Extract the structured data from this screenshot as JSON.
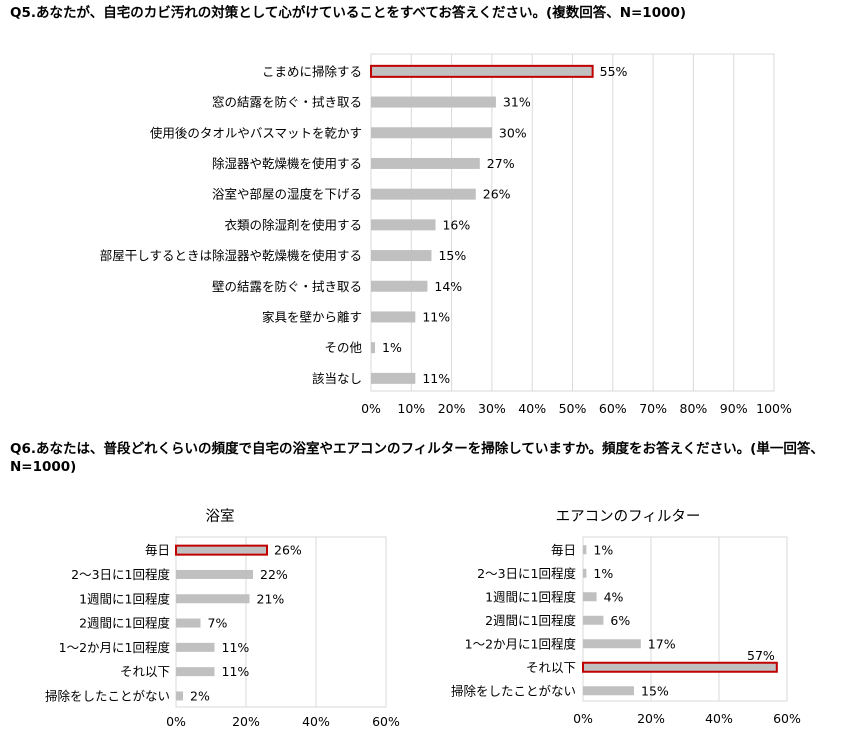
{
  "q5": {
    "question": "Q5.あなたが、自宅のカビ汚れの対策として心がけていることをすべてお答えください。(複数回答、N=1000)"
  },
  "q6": {
    "question": "Q6.あなたは、普段どれくらいの頻度で自宅の浴室やエアコンのフィルターを掃除していますか。頻度をお答えください。(単一回答、N=1000)"
  },
  "colors": {
    "bar": "#c0c0c0",
    "highlight_border": "#c00000",
    "grid": "#d9d9d9"
  },
  "chart_data": [
    {
      "type": "bar",
      "orientation": "horizontal",
      "categories": [
        "こまめに掃除する",
        "窓の結露を防ぐ・拭き取る",
        "使用後のタオルやバスマットを乾かす",
        "除湿器や乾燥機を使用する",
        "浴室や部屋の湿度を下げる",
        "衣類の除湿剤を使用する",
        "部屋干しするときは除湿器や乾燥機を使用する",
        "壁の結露を防ぐ・拭き取る",
        "家具を壁から離す",
        "その他",
        "該当なし"
      ],
      "values": [
        55,
        31,
        30,
        27,
        26,
        16,
        15,
        14,
        11,
        1,
        11
      ],
      "value_labels": [
        "55%",
        "31%",
        "30%",
        "27%",
        "26%",
        "16%",
        "15%",
        "14%",
        "11%",
        "1%",
        "11%"
      ],
      "highlight_index": 0,
      "xlim": [
        0,
        100
      ],
      "xticks": [
        "0%",
        "10%",
        "20%",
        "30%",
        "40%",
        "50%",
        "60%",
        "70%",
        "80%",
        "90%",
        "100%"
      ],
      "grid": true
    },
    {
      "type": "bar",
      "orientation": "horizontal",
      "title": "浴室",
      "categories": [
        "毎日",
        "2～3日に1回程度",
        "1週間に1回程度",
        "2週間に1回程度",
        "1～2か月に1回程度",
        "それ以下",
        "掃除をしたことがない"
      ],
      "values": [
        26,
        22,
        21,
        7,
        11,
        11,
        2
      ],
      "value_labels": [
        "26%",
        "22%",
        "21%",
        "7%",
        "11%",
        "11%",
        "2%"
      ],
      "highlight_index": 0,
      "xlim": [
        0,
        60
      ],
      "xticks": [
        "0%",
        "20%",
        "40%",
        "60%"
      ],
      "grid": true
    },
    {
      "type": "bar",
      "orientation": "horizontal",
      "title": "エアコンのフィルター",
      "categories": [
        "毎日",
        "2～3日に1回程度",
        "1週間に1回程度",
        "2週間に1回程度",
        "1～2か月に1回程度",
        "それ以下",
        "掃除をしたことがない"
      ],
      "values": [
        1,
        1,
        4,
        6,
        17,
        57,
        15
      ],
      "value_labels": [
        "1%",
        "1%",
        "4%",
        "6%",
        "17%",
        "57%",
        "15%"
      ],
      "highlight_index": 5,
      "xlim": [
        0,
        60
      ],
      "xticks": [
        "0%",
        "20%",
        "40%",
        "60%"
      ],
      "grid": true
    }
  ]
}
